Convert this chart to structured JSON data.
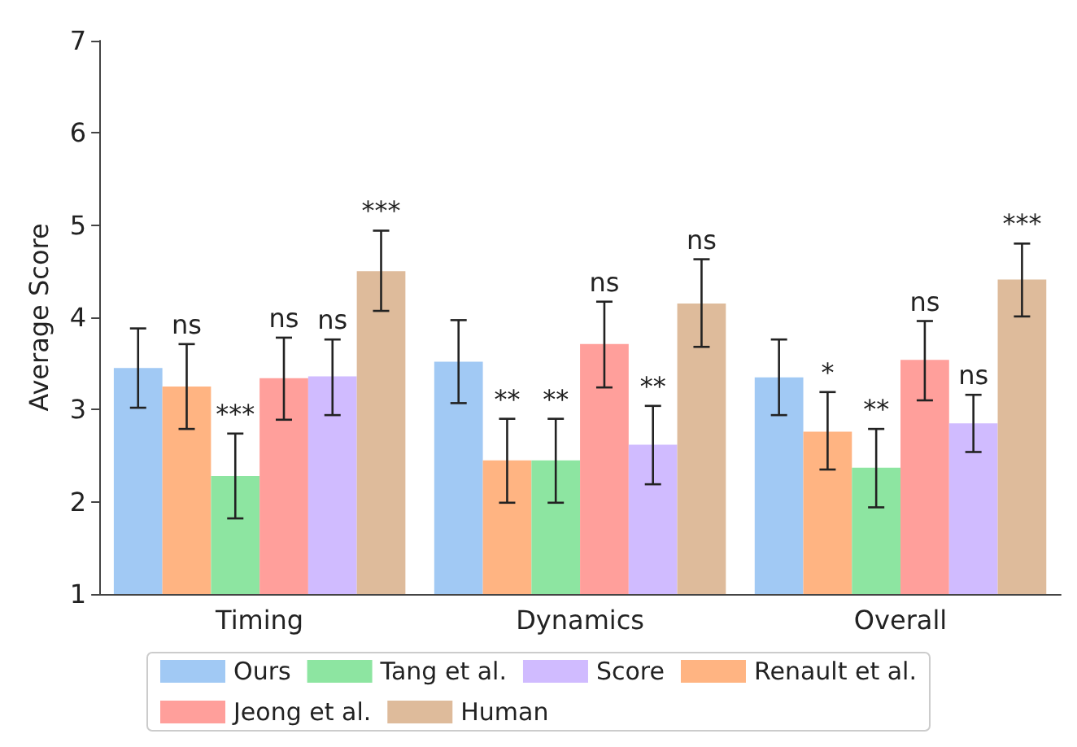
{
  "chart_data": {
    "type": "bar",
    "ylabel": "Average Score",
    "categories": [
      "Timing",
      "Dynamics",
      "Overall"
    ],
    "ylim": [
      1,
      7
    ],
    "yticks": [
      1,
      2,
      3,
      4,
      5,
      6,
      7
    ],
    "grid": false,
    "legend": "bottom",
    "series": [
      {
        "name": "Ours",
        "color": "#a1c9f4",
        "values": [
          3.45,
          3.52,
          3.35
        ],
        "errors": [
          [
            3.02,
            3.88
          ],
          [
            3.07,
            3.97
          ],
          [
            2.94,
            3.76
          ]
        ],
        "value_labels": [
          null,
          null,
          null
        ]
      },
      {
        "name": "Renault et al.",
        "color": "#ffb482",
        "values": [
          3.25,
          2.45,
          2.76
        ],
        "errors": [
          [
            2.79,
            3.71
          ],
          [
            1.99,
            2.9
          ],
          [
            2.35,
            3.19
          ]
        ],
        "value_labels": [
          "ns",
          "**",
          "*"
        ]
      },
      {
        "name": "Tang et al.",
        "color": "#8de5a1",
        "values": [
          2.28,
          2.45,
          2.37
        ],
        "errors": [
          [
            1.82,
            2.74
          ],
          [
            1.99,
            2.9
          ],
          [
            1.94,
            2.79
          ]
        ],
        "value_labels": [
          "***",
          "**",
          "**"
        ]
      },
      {
        "name": "Jeong et al.",
        "color": "#ff9f9b",
        "values": [
          3.34,
          3.71,
          3.54
        ],
        "errors": [
          [
            2.89,
            3.78
          ],
          [
            3.24,
            4.17
          ],
          [
            3.1,
            3.96
          ]
        ],
        "value_labels": [
          "ns",
          "ns",
          "ns"
        ]
      },
      {
        "name": "Score",
        "color": "#d0bbff",
        "values": [
          3.36,
          2.62,
          2.85
        ],
        "errors": [
          [
            2.94,
            3.76
          ],
          [
            2.19,
            3.04
          ],
          [
            2.54,
            3.16
          ]
        ],
        "value_labels": [
          "ns",
          "**",
          "ns"
        ]
      },
      {
        "name": "Human",
        "color": "#debb9b",
        "values": [
          4.5,
          4.15,
          4.41
        ],
        "errors": [
          [
            4.07,
            4.94
          ],
          [
            3.68,
            4.63
          ],
          [
            4.01,
            4.8
          ]
        ],
        "value_labels": [
          "***",
          "ns",
          "***"
        ]
      }
    ]
  }
}
